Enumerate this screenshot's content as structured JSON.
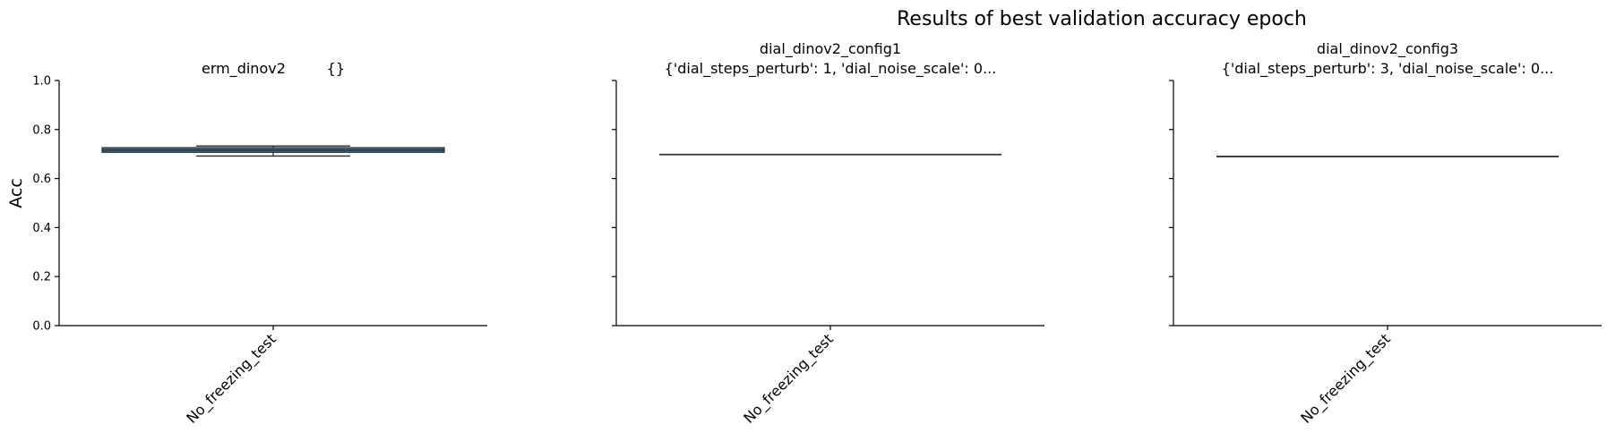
{
  "figure": {
    "title": "Results of best validation accuracy epoch",
    "ylabel": "Acc"
  },
  "chart_data": [
    {
      "type": "box",
      "title_line1": "erm_dinov2         {}",
      "title_line2": "",
      "categories": [
        "No_freezing_test"
      ],
      "box": {
        "min": 0.692,
        "q1": 0.707,
        "median": 0.716,
        "q3": 0.726,
        "max": 0.733
      },
      "ylim": [
        0,
        1.0
      ],
      "yticks": [
        "0.0",
        "0.2",
        "0.4",
        "0.6",
        "0.8",
        "1.0"
      ],
      "show_ytick_labels": true,
      "box_color": "#3f6f96"
    },
    {
      "type": "box",
      "title_line1": "dial_dinov2_config1",
      "title_line2": "{'dial_steps_perturb': 1, 'dial_noise_scale': 0...",
      "categories": [
        "No_freezing_test"
      ],
      "box": {
        "min": 0.698,
        "q1": 0.698,
        "median": 0.698,
        "q3": 0.698,
        "max": 0.698
      },
      "ylim": [
        0,
        1.0
      ],
      "yticks": [
        "0.0",
        "0.2",
        "0.4",
        "0.6",
        "0.8",
        "1.0"
      ],
      "show_ytick_labels": false,
      "box_color": "#3f6f96"
    },
    {
      "type": "box",
      "title_line1": "dial_dinov2_config3",
      "title_line2": "{'dial_steps_perturb': 3, 'dial_noise_scale': 0...",
      "categories": [
        "No_freezing_test"
      ],
      "box": {
        "min": 0.69,
        "q1": 0.69,
        "median": 0.69,
        "q3": 0.69,
        "max": 0.69
      },
      "ylim": [
        0,
        1.0
      ],
      "yticks": [
        "0.0",
        "0.2",
        "0.4",
        "0.6",
        "0.8",
        "1.0"
      ],
      "show_ytick_labels": false,
      "box_color": "#3f6f96"
    }
  ]
}
